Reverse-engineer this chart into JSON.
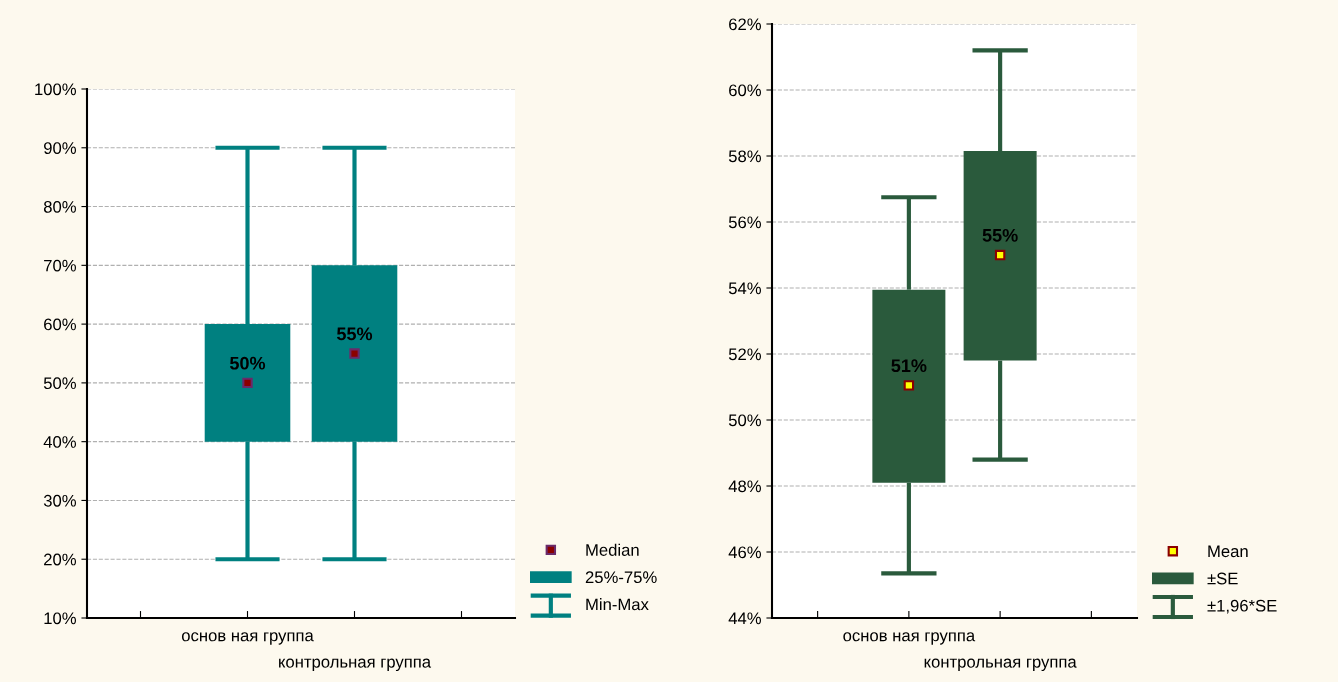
{
  "chart_data": [
    {
      "type": "box",
      "categories": [
        "основ ная группа",
        "контрольная группа"
      ],
      "ylim": [
        10,
        100
      ],
      "yticks": [
        {
          "value": 10,
          "label": "10%"
        },
        {
          "value": 20,
          "label": "20%"
        },
        {
          "value": 30,
          "label": "30%"
        },
        {
          "value": 40,
          "label": "40%"
        },
        {
          "value": 50,
          "label": "50%"
        },
        {
          "value": 60,
          "label": "60%"
        },
        {
          "value": 70,
          "label": "70%"
        },
        {
          "value": 80,
          "label": "80%"
        },
        {
          "value": 90,
          "label": "90%"
        },
        {
          "value": 100,
          "label": "100%"
        }
      ],
      "grid": "y",
      "legend": "bottom right",
      "series": [
        {
          "type": "box",
          "name": "25%-75%",
          "color": "#008080",
          "boxes": [
            {
              "low": 20,
              "q1": 40,
              "median": 50,
              "q3": 60,
              "high": 90
            },
            {
              "low": 20,
              "q1": 40,
              "median": 55,
              "q3": 70,
              "high": 90
            }
          ],
          "value_labels": [
            "50%",
            "55%"
          ]
        }
      ],
      "annotations": [
        "Median",
        "Min-Max"
      ]
    },
    {
      "type": "box",
      "categories": [
        "основ ная группа",
        "контрольная группа"
      ],
      "ylim": [
        44,
        62
      ],
      "yticks": [
        {
          "value": 44,
          "label": "44%"
        },
        {
          "value": 46,
          "label": "46%"
        },
        {
          "value": 48,
          "label": "48%"
        },
        {
          "value": 50,
          "label": "50%"
        },
        {
          "value": 52,
          "label": "52%"
        },
        {
          "value": 54,
          "label": "54%"
        },
        {
          "value": 56,
          "label": "56%"
        },
        {
          "value": 58,
          "label": "58%"
        },
        {
          "value": 60,
          "label": "60%"
        },
        {
          "value": 62,
          "label": "62%"
        }
      ],
      "grid": "y",
      "legend": "bottom right",
      "series": [
        {
          "type": "box",
          "name": "±SE",
          "color": "#2a5a3c",
          "boxes": [
            {
              "low": 45.35,
              "q1": 48.1,
              "mean": 51.05,
              "q3": 53.95,
              "high": 56.75
            },
            {
              "low": 48.8,
              "q1": 51.8,
              "mean": 55.0,
              "q3": 58.15,
              "high": 61.2
            }
          ],
          "value_labels": [
            "51%",
            "55%"
          ]
        }
      ],
      "annotations": [
        "Mean",
        "±1,96*SE"
      ]
    }
  ]
}
